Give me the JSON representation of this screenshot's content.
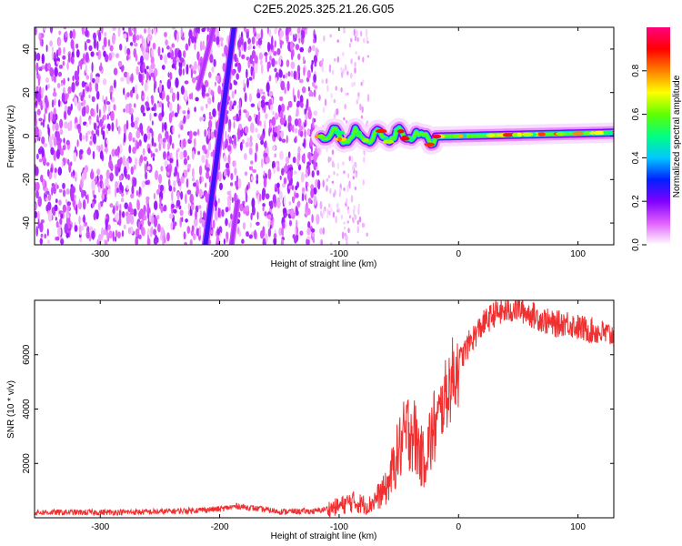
{
  "title": "C2E5.2025.325.21.26.G05",
  "chart_data": [
    {
      "type": "heatmap",
      "xlabel": "Height of straight line (km)",
      "ylabel": "Frequency (Hz)",
      "xlim": [
        -355,
        130
      ],
      "ylim": [
        -50,
        50
      ],
      "xticks": [
        -300,
        -200,
        -100,
        0,
        100
      ],
      "yticks": [
        -40,
        -20,
        0,
        20,
        40
      ],
      "colorbar": {
        "label": "Normalized spectral amplitude",
        "range": [
          0.0,
          1.0
        ],
        "ticks": [
          0.0,
          0.2,
          0.4,
          0.6,
          0.8
        ],
        "colors": [
          "#ffffff",
          "#e060ff",
          "#8000ff",
          "#0020ff",
          "#00c8ff",
          "#00ff80",
          "#60ff00",
          "#ffff00",
          "#ff8000",
          "#ff0000",
          "#ff0080"
        ]
      },
      "features": [
        {
          "name": "noise-region",
          "x_range": [
            -355,
            -115
          ],
          "amplitude": 0.1
        },
        {
          "name": "sparse-noise",
          "x_range": [
            -115,
            -75
          ],
          "amplitude": 0.05
        },
        {
          "name": "diagonal-line-1",
          "x": [
            -212,
            -188
          ],
          "y": [
            -50,
            50
          ],
          "amplitude": 0.25
        },
        {
          "name": "diagonal-line-2",
          "x": [
            -218,
            -205
          ],
          "y": [
            22,
            50
          ],
          "amplitude": 0.15
        },
        {
          "name": "diagonal-line-3",
          "x": [
            -190,
            -185
          ],
          "y": [
            -50,
            -30
          ],
          "amplitude": 0.15
        },
        {
          "name": "carrier-band",
          "x_range": [
            -115,
            130
          ],
          "frequency": 0,
          "amplitude": 0.9
        }
      ]
    },
    {
      "type": "line",
      "xlabel": "Height of straight line (km)",
      "ylabel": "SNR (10 * v/v)",
      "xlim": [
        -355,
        130
      ],
      "ylim": [
        0,
        8000
      ],
      "xticks": [
        -300,
        -200,
        -100,
        0,
        100
      ],
      "yticks": [
        2000,
        4000,
        6000
      ],
      "color": "#f03030",
      "series": [
        {
          "name": "SNR",
          "x": [
            -355,
            -300,
            -250,
            -200,
            -185,
            -150,
            -120,
            -100,
            -90,
            -75,
            -60,
            -50,
            -40,
            -30,
            -20,
            -10,
            0,
            10,
            20,
            30,
            40,
            50,
            60,
            70,
            80,
            90,
            100,
            110,
            120,
            130
          ],
          "y": [
            200,
            200,
            220,
            320,
            430,
            230,
            240,
            420,
            600,
            450,
            1100,
            2500,
            3400,
            2100,
            3300,
            4600,
            5700,
            6500,
            7100,
            7500,
            7600,
            7700,
            7500,
            7300,
            7100,
            7200,
            7000,
            6900,
            6800,
            6700
          ]
        }
      ]
    }
  ]
}
